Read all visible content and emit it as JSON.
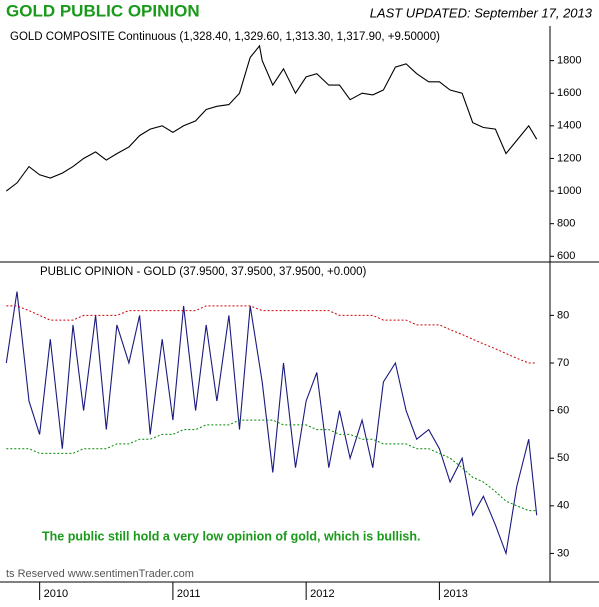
{
  "title": "GOLD PUBLIC OPINION",
  "updated": "LAST UPDATED:  September 17, 2013",
  "credit": "ts Reserved  www.sentimenTrader.com",
  "chart_data": [
    {
      "type": "line",
      "title": "GOLD COMPOSITE Continuous (1,328.40, 1,329.60, 1,313.30, 1,317.90, +9.50000)",
      "x": [
        2009.75,
        2009.83,
        2009.92,
        2010.0,
        2010.08,
        2010.17,
        2010.25,
        2010.33,
        2010.42,
        2010.5,
        2010.58,
        2010.67,
        2010.75,
        2010.83,
        2010.92,
        2011.0,
        2011.08,
        2011.17,
        2011.25,
        2011.33,
        2011.42,
        2011.5,
        2011.58,
        2011.65,
        2011.67,
        2011.75,
        2011.83,
        2011.92,
        2012.0,
        2012.08,
        2012.17,
        2012.25,
        2012.33,
        2012.42,
        2012.5,
        2012.58,
        2012.67,
        2012.75,
        2012.83,
        2012.92,
        2013.0,
        2013.08,
        2013.17,
        2013.25,
        2013.33,
        2013.42,
        2013.5,
        2013.58,
        2013.67,
        2013.73
      ],
      "series": [
        {
          "color": "#000000",
          "values": [
            1000,
            1050,
            1150,
            1100,
            1080,
            1110,
            1150,
            1200,
            1240,
            1190,
            1230,
            1270,
            1340,
            1380,
            1400,
            1360,
            1400,
            1430,
            1500,
            1520,
            1530,
            1600,
            1820,
            1890,
            1800,
            1650,
            1750,
            1600,
            1700,
            1720,
            1650,
            1650,
            1560,
            1600,
            1590,
            1620,
            1760,
            1780,
            1720,
            1670,
            1670,
            1620,
            1600,
            1420,
            1390,
            1380,
            1230,
            1310,
            1400,
            1318
          ]
        }
      ],
      "xlim": [
        2009.74,
        2013.83
      ],
      "ylim": [
        565,
        2000
      ],
      "yticks": [
        600,
        800,
        1000,
        1200,
        1400,
        1600,
        1800
      ]
    },
    {
      "type": "line",
      "title": "PUBLIC OPINION - GOLD (37.9500, 37.9500, 37.9500, +0.000)",
      "annotation": "The public still hold a very low opinion of gold, which is bullish.",
      "x": [
        2009.75,
        2009.83,
        2009.92,
        2010.0,
        2010.08,
        2010.17,
        2010.25,
        2010.33,
        2010.42,
        2010.5,
        2010.58,
        2010.67,
        2010.75,
        2010.83,
        2010.92,
        2011.0,
        2011.08,
        2011.17,
        2011.25,
        2011.33,
        2011.42,
        2011.5,
        2011.58,
        2011.67,
        2011.75,
        2011.83,
        2011.92,
        2012.0,
        2012.08,
        2012.17,
        2012.25,
        2012.33,
        2012.42,
        2012.5,
        2012.58,
        2012.67,
        2012.75,
        2012.83,
        2012.92,
        2013.0,
        2013.08,
        2013.17,
        2013.25,
        2013.33,
        2013.42,
        2013.5,
        2013.58,
        2013.67,
        2013.73
      ],
      "series": [
        {
          "color": "#1a1a80",
          "values": [
            70,
            85,
            62,
            55,
            75,
            52,
            78,
            60,
            80,
            56,
            78,
            70,
            80,
            55,
            75,
            58,
            82,
            60,
            78,
            62,
            80,
            56,
            82,
            66,
            47,
            70,
            48,
            62,
            68,
            48,
            60,
            50,
            58,
            48,
            66,
            70,
            60,
            54,
            56,
            52,
            45,
            50,
            38,
            42,
            36,
            30,
            44,
            54,
            38
          ]
        },
        {
          "color": "#cc0000",
          "dashed": true,
          "values": [
            82,
            82,
            81,
            80,
            79,
            79,
            79,
            80,
            80,
            80,
            80,
            81,
            81,
            81,
            81,
            81,
            81,
            81,
            82,
            82,
            82,
            82,
            82,
            81,
            81,
            81,
            81,
            81,
            81,
            81,
            80,
            80,
            80,
            80,
            79,
            79,
            79,
            78,
            78,
            78,
            77,
            76,
            75,
            74,
            73,
            72,
            71,
            70,
            70
          ]
        },
        {
          "color": "#008800",
          "dashed": true,
          "values": [
            52,
            52,
            52,
            51,
            51,
            51,
            51,
            52,
            52,
            52,
            53,
            53,
            54,
            54,
            55,
            55,
            56,
            56,
            57,
            57,
            57,
            58,
            58,
            58,
            58,
            57,
            57,
            57,
            56,
            56,
            55,
            55,
            54,
            54,
            53,
            53,
            53,
            52,
            52,
            51,
            50,
            48,
            46,
            45,
            43,
            41,
            40,
            39,
            39
          ]
        }
      ],
      "xlim": [
        2009.74,
        2013.83
      ],
      "xticks": [
        2010,
        2011,
        2012,
        2013
      ],
      "ylim": [
        24,
        91
      ],
      "yticks": [
        30,
        40,
        50,
        60,
        70,
        80
      ]
    }
  ]
}
